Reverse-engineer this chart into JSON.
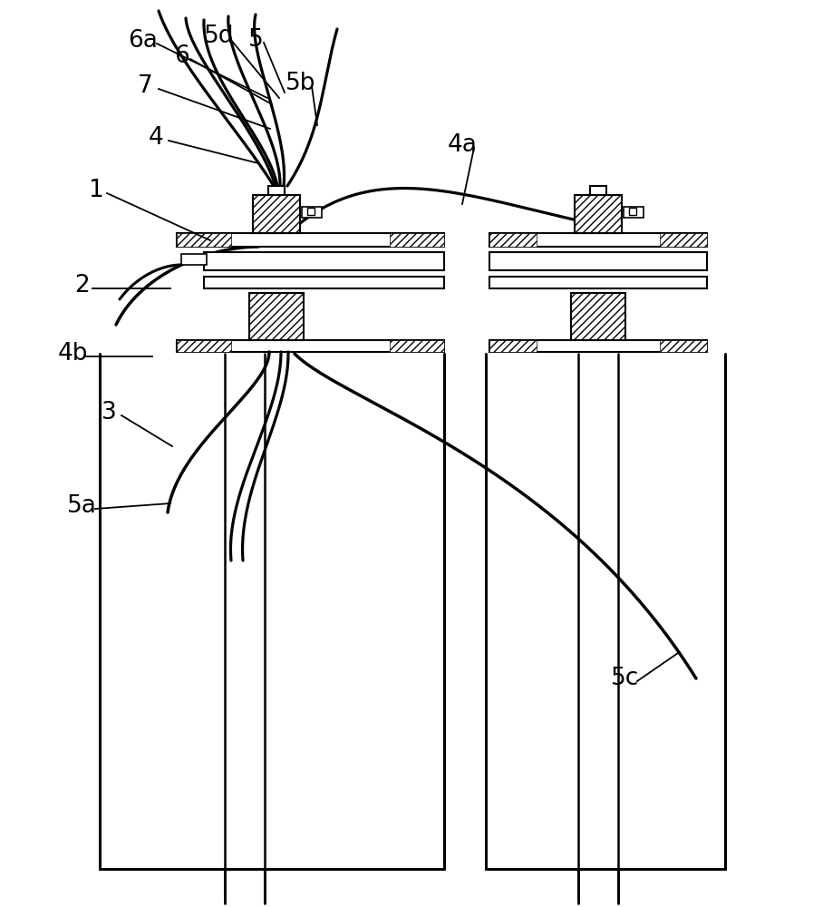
{
  "bg_color": "#ffffff",
  "line_color": "#000000",
  "figsize": [
    8.97,
    10.0
  ],
  "dpi": 100,
  "labels": {
    "6a": {
      "ix": 158,
      "iy": 45
    },
    "6": {
      "ix": 200,
      "iy": 62
    },
    "5d": {
      "ix": 242,
      "iy": 40
    },
    "5": {
      "ix": 282,
      "iy": 44
    },
    "7": {
      "ix": 160,
      "iy": 95
    },
    "5b": {
      "ix": 332,
      "iy": 92
    },
    "4": {
      "ix": 172,
      "iy": 152
    },
    "4a": {
      "ix": 510,
      "iy": 160
    },
    "1": {
      "ix": 105,
      "iy": 210
    },
    "2": {
      "ix": 90,
      "iy": 315
    },
    "4b": {
      "ix": 80,
      "iy": 390
    },
    "3": {
      "ix": 120,
      "iy": 455
    },
    "5a": {
      "ix": 90,
      "iy": 558
    },
    "5c": {
      "ix": 690,
      "iy": 748
    }
  }
}
